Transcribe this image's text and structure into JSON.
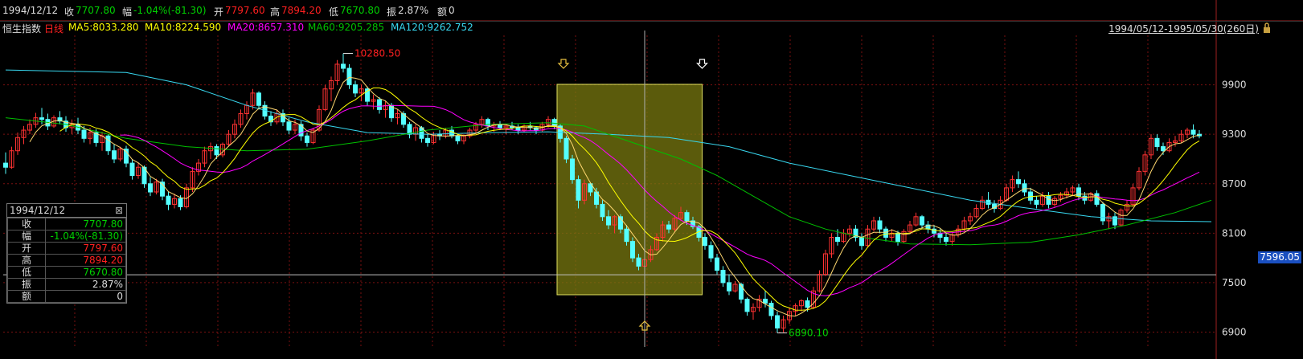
{
  "colors": {
    "up": "#ff3232",
    "down": "#54ffff",
    "ma5": "#ffffff",
    "ma10": "#ffff00",
    "ma20": "#ff00ff",
    "ma60": "#00c000",
    "ma120": "#38d8f0",
    "green": "#00d000",
    "red": "#ff2020",
    "yellow": "#ffff00",
    "highlight": "#7a7a10"
  },
  "header": {
    "date": "1994/12/12",
    "close_label": "收",
    "close": "7707.80",
    "chg_label": "幅",
    "chg": "-1.04%(-81.30)",
    "open_label": "开",
    "open": "7797.60",
    "high_label": "高",
    "high": "7894.20",
    "low_label": "低",
    "low": "7670.80",
    "amp_label": "振",
    "amp": "2.87%",
    "vol_label": "额",
    "vol": "0"
  },
  "ma_bar": {
    "name": "恒生指数",
    "period": "日线",
    "ma5": "MA5:8033.280",
    "ma10": "MA10:8224.590",
    "ma20": "MA20:8657.310",
    "ma60": "MA60:9205.285",
    "ma120": "MA120:9262.752"
  },
  "range_text": "1994/05/12-1995/05/30(260日)",
  "info_box": {
    "date": "1994/12/12",
    "close_icon": "close-icon",
    "rows": [
      {
        "k": "收",
        "v": "7707.80",
        "c": "green"
      },
      {
        "k": "幅",
        "v": "-1.04%(-81.30)",
        "c": "green"
      },
      {
        "k": "开",
        "v": "7797.60",
        "c": "red"
      },
      {
        "k": "高",
        "v": "7894.20",
        "c": "red"
      },
      {
        "k": "低",
        "v": "7670.80",
        "c": "green"
      },
      {
        "k": "振",
        "v": "2.87%",
        "c": "white"
      },
      {
        "k": "额",
        "v": "0",
        "c": "white"
      }
    ]
  },
  "current_price_tag": "7596.05",
  "chart_data": {
    "type": "candlestick",
    "title": "",
    "xlabel": "",
    "ylabel": "",
    "ylim": [
      6720,
      10500
    ],
    "y_ticks": [
      "9900",
      "9300",
      "8700",
      "8100",
      "7500",
      "6900"
    ],
    "y_tick_values": [
      9900,
      9300,
      8700,
      8100,
      7500,
      6900
    ],
    "grid": true,
    "annotations": {
      "high_label": "10280.50",
      "high_value": 10280.5,
      "low_label": "6890.10",
      "low_value": 6890.1
    },
    "current_price": 7596.05,
    "crosshair_index": 106,
    "highlight_range": {
      "from_index": 92,
      "to_index": 115
    },
    "candles": [
      [
        8950,
        9080,
        8820,
        8900
      ],
      [
        8900,
        9150,
        8880,
        9100
      ],
      [
        9100,
        9320,
        9050,
        9260
      ],
      [
        9260,
        9400,
        9180,
        9350
      ],
      [
        9350,
        9480,
        9300,
        9420
      ],
      [
        9420,
        9560,
        9380,
        9500
      ],
      [
        9500,
        9620,
        9420,
        9480
      ],
      [
        9480,
        9550,
        9350,
        9400
      ],
      [
        9400,
        9530,
        9380,
        9500
      ],
      [
        9500,
        9580,
        9420,
        9460
      ],
      [
        9460,
        9520,
        9330,
        9380
      ],
      [
        9380,
        9480,
        9300,
        9420
      ],
      [
        9420,
        9500,
        9300,
        9350
      ],
      [
        9350,
        9400,
        9200,
        9250
      ],
      [
        9250,
        9380,
        9180,
        9320
      ],
      [
        9320,
        9360,
        9150,
        9200
      ],
      [
        9200,
        9330,
        9100,
        9280
      ],
      [
        9280,
        9300,
        9050,
        9100
      ],
      [
        9100,
        9180,
        8950,
        9000
      ],
      [
        9000,
        9150,
        8970,
        9120
      ],
      [
        9120,
        9160,
        8900,
        8950
      ],
      [
        8950,
        9000,
        8750,
        8800
      ],
      [
        8800,
        8950,
        8760,
        8900
      ],
      [
        8900,
        8920,
        8650,
        8700
      ],
      [
        8700,
        8780,
        8550,
        8600
      ],
      [
        8600,
        8760,
        8570,
        8720
      ],
      [
        8720,
        8760,
        8500,
        8550
      ],
      [
        8550,
        8600,
        8380,
        8450
      ],
      [
        8450,
        8580,
        8400,
        8520
      ],
      [
        8520,
        8560,
        8380,
        8420
      ],
      [
        8420,
        8700,
        8400,
        8650
      ],
      [
        8650,
        8900,
        8600,
        8850
      ],
      [
        8850,
        9000,
        8800,
        8950
      ],
      [
        8950,
        9150,
        8900,
        9100
      ],
      [
        9100,
        9200,
        9000,
        9150
      ],
      [
        9150,
        9180,
        9000,
        9050
      ],
      [
        9050,
        9200,
        9020,
        9180
      ],
      [
        9180,
        9350,
        9150,
        9300
      ],
      [
        9300,
        9480,
        9250,
        9420
      ],
      [
        9420,
        9600,
        9380,
        9550
      ],
      [
        9550,
        9700,
        9480,
        9650
      ],
      [
        9650,
        9850,
        9600,
        9800
      ],
      [
        9800,
        9820,
        9600,
        9650
      ],
      [
        9650,
        9700,
        9480,
        9520
      ],
      [
        9520,
        9580,
        9400,
        9450
      ],
      [
        9450,
        9600,
        9420,
        9550
      ],
      [
        9550,
        9600,
        9400,
        9450
      ],
      [
        9450,
        9500,
        9300,
        9350
      ],
      [
        9350,
        9480,
        9300,
        9420
      ],
      [
        9420,
        9460,
        9220,
        9280
      ],
      [
        9280,
        9320,
        9150,
        9200
      ],
      [
        9200,
        9380,
        9180,
        9350
      ],
      [
        9350,
        9650,
        9330,
        9600
      ],
      [
        9600,
        9900,
        9580,
        9850
      ],
      [
        9850,
        10000,
        9700,
        9950
      ],
      [
        9950,
        10200,
        9900,
        10150
      ],
      [
        10150,
        10280,
        10050,
        10100
      ],
      [
        10100,
        10150,
        9850,
        9900
      ],
      [
        9900,
        9950,
        9750,
        9800
      ],
      [
        9800,
        9900,
        9700,
        9850
      ],
      [
        9850,
        9880,
        9650,
        9700
      ],
      [
        9700,
        9780,
        9600,
        9720
      ],
      [
        9720,
        9750,
        9550,
        9600
      ],
      [
        9600,
        9700,
        9500,
        9650
      ],
      [
        9650,
        9680,
        9450,
        9500
      ],
      [
        9500,
        9600,
        9420,
        9550
      ],
      [
        9550,
        9580,
        9380,
        9420
      ],
      [
        9420,
        9450,
        9250,
        9300
      ],
      [
        9300,
        9420,
        9220,
        9380
      ],
      [
        9380,
        9400,
        9200,
        9250
      ],
      [
        9250,
        9300,
        9150,
        9200
      ],
      [
        9200,
        9330,
        9180,
        9300
      ],
      [
        9300,
        9350,
        9230,
        9280
      ],
      [
        9280,
        9380,
        9250,
        9350
      ],
      [
        9350,
        9400,
        9250,
        9280
      ],
      [
        9280,
        9300,
        9180,
        9220
      ],
      [
        9220,
        9300,
        9180,
        9280
      ],
      [
        9280,
        9380,
        9250,
        9350
      ],
      [
        9350,
        9450,
        9300,
        9420
      ],
      [
        9420,
        9520,
        9380,
        9480
      ],
      [
        9480,
        9500,
        9350,
        9400
      ],
      [
        9400,
        9450,
        9330,
        9420
      ],
      [
        9420,
        9460,
        9350,
        9380
      ],
      [
        9380,
        9420,
        9300,
        9400
      ],
      [
        9400,
        9450,
        9350,
        9380
      ],
      [
        9380,
        9420,
        9300,
        9350
      ],
      [
        9350,
        9420,
        9320,
        9400
      ],
      [
        9400,
        9450,
        9350,
        9380
      ],
      [
        9380,
        9400,
        9300,
        9350
      ],
      [
        9350,
        9450,
        9330,
        9420
      ],
      [
        9420,
        9520,
        9380,
        9480
      ],
      [
        9480,
        9500,
        9360,
        9400
      ],
      [
        9400,
        9420,
        9200,
        9250
      ],
      [
        9250,
        9280,
        8950,
        9000
      ],
      [
        9000,
        9050,
        8700,
        8750
      ],
      [
        8750,
        8800,
        8400,
        8500
      ],
      [
        8500,
        8750,
        8450,
        8700
      ],
      [
        8700,
        8720,
        8550,
        8600
      ],
      [
        8600,
        8650,
        8400,
        8450
      ],
      [
        8450,
        8500,
        8250,
        8300
      ],
      [
        8300,
        8380,
        8150,
        8200
      ],
      [
        8200,
        8320,
        8100,
        8300
      ],
      [
        8300,
        8330,
        8100,
        8150
      ],
      [
        8150,
        8200,
        7950,
        8000
      ],
      [
        8000,
        8050,
        7750,
        7800
      ],
      [
        7800,
        7850,
        7650,
        7700
      ],
      [
        7700,
        7800,
        7650,
        7780
      ],
      [
        7780,
        7950,
        7750,
        7900
      ],
      [
        7900,
        8100,
        7880,
        8050
      ],
      [
        8050,
        8250,
        8000,
        8200
      ],
      [
        8200,
        8250,
        8100,
        8150
      ],
      [
        8150,
        8320,
        8120,
        8280
      ],
      [
        8280,
        8420,
        8250,
        8350
      ],
      [
        8350,
        8380,
        8200,
        8250
      ],
      [
        8250,
        8300,
        8150,
        8180
      ],
      [
        8180,
        8200,
        8000,
        8050
      ],
      [
        8050,
        8100,
        7900,
        7950
      ],
      [
        7950,
        8000,
        7750,
        7800
      ],
      [
        7800,
        7850,
        7600,
        7650
      ],
      [
        7650,
        7700,
        7450,
        7500
      ],
      [
        7500,
        7600,
        7350,
        7400
      ],
      [
        7400,
        7520,
        7380,
        7480
      ],
      [
        7480,
        7500,
        7250,
        7300
      ],
      [
        7300,
        7320,
        7100,
        7150
      ],
      [
        7150,
        7250,
        7050,
        7200
      ],
      [
        7200,
        7350,
        7150,
        7300
      ],
      [
        7300,
        7400,
        7200,
        7250
      ],
      [
        7250,
        7280,
        7050,
        7100
      ],
      [
        7100,
        7150,
        6890,
        6950
      ],
      [
        6950,
        7100,
        6900,
        7050
      ],
      [
        7050,
        7200,
        7000,
        7150
      ],
      [
        7150,
        7250,
        7100,
        7220
      ],
      [
        7220,
        7300,
        7150,
        7280
      ],
      [
        7280,
        7320,
        7150,
        7200
      ],
      [
        7200,
        7450,
        7180,
        7400
      ],
      [
        7400,
        7650,
        7380,
        7600
      ],
      [
        7600,
        7900,
        7580,
        7850
      ],
      [
        7850,
        8100,
        7800,
        8050
      ],
      [
        8050,
        8150,
        7950,
        8000
      ],
      [
        8000,
        8150,
        7980,
        8100
      ],
      [
        8100,
        8200,
        8050,
        8150
      ],
      [
        8150,
        8200,
        8000,
        8050
      ],
      [
        8050,
        8100,
        7900,
        7950
      ],
      [
        7950,
        8200,
        7930,
        8150
      ],
      [
        8150,
        8300,
        8120,
        8250
      ],
      [
        8250,
        8300,
        8100,
        8150
      ],
      [
        8150,
        8180,
        8000,
        8050
      ],
      [
        8050,
        8150,
        8000,
        8100
      ],
      [
        8100,
        8130,
        7950,
        8000
      ],
      [
        8000,
        8150,
        7980,
        8120
      ],
      [
        8120,
        8250,
        8100,
        8200
      ],
      [
        8200,
        8350,
        8180,
        8300
      ],
      [
        8300,
        8320,
        8150,
        8200
      ],
      [
        8200,
        8250,
        8100,
        8150
      ],
      [
        8150,
        8200,
        8050,
        8100
      ],
      [
        8100,
        8150,
        7980,
        8050
      ],
      [
        8050,
        8100,
        7950,
        8000
      ],
      [
        8000,
        8100,
        7950,
        8080
      ],
      [
        8080,
        8200,
        8050,
        8150
      ],
      [
        8150,
        8300,
        8120,
        8250
      ],
      [
        8250,
        8350,
        8200,
        8300
      ],
      [
        8300,
        8450,
        8280,
        8400
      ],
      [
        8400,
        8550,
        8380,
        8500
      ],
      [
        8500,
        8600,
        8400,
        8450
      ],
      [
        8450,
        8500,
        8350,
        8400
      ],
      [
        8400,
        8550,
        8380,
        8500
      ],
      [
        8500,
        8700,
        8480,
        8650
      ],
      [
        8650,
        8800,
        8600,
        8750
      ],
      [
        8750,
        8850,
        8650,
        8700
      ],
      [
        8700,
        8750,
        8550,
        8600
      ],
      [
        8600,
        8650,
        8450,
        8500
      ],
      [
        8500,
        8550,
        8400,
        8450
      ],
      [
        8450,
        8600,
        8420,
        8550
      ],
      [
        8550,
        8600,
        8400,
        8450
      ],
      [
        8450,
        8550,
        8420,
        8520
      ],
      [
        8520,
        8600,
        8480,
        8560
      ],
      [
        8560,
        8650,
        8520,
        8600
      ],
      [
        8600,
        8680,
        8550,
        8650
      ],
      [
        8650,
        8700,
        8500,
        8550
      ],
      [
        8550,
        8600,
        8450,
        8500
      ],
      [
        8500,
        8600,
        8480,
        8580
      ],
      [
        8580,
        8620,
        8420,
        8450
      ],
      [
        8450,
        8480,
        8200,
        8250
      ],
      [
        8250,
        8350,
        8150,
        8300
      ],
      [
        8300,
        8350,
        8150,
        8200
      ],
      [
        8200,
        8400,
        8180,
        8380
      ],
      [
        8380,
        8500,
        8350,
        8450
      ],
      [
        8450,
        8700,
        8420,
        8650
      ],
      [
        8650,
        8900,
        8620,
        8850
      ],
      [
        8850,
        9100,
        8800,
        9050
      ],
      [
        9050,
        9300,
        9000,
        9250
      ],
      [
        9250,
        9300,
        9100,
        9150
      ],
      [
        9150,
        9200,
        9050,
        9100
      ],
      [
        9100,
        9250,
        9080,
        9200
      ],
      [
        9200,
        9280,
        9150,
        9220
      ],
      [
        9220,
        9350,
        9200,
        9300
      ],
      [
        9300,
        9380,
        9250,
        9350
      ],
      [
        9350,
        9420,
        9250,
        9300
      ],
      [
        9300,
        9350,
        9250,
        9280
      ]
    ],
    "ma5": [],
    "ma10": [],
    "ma20": [],
    "ma60_points": [
      [
        0,
        9500
      ],
      [
        10,
        9420
      ],
      [
        20,
        9250
      ],
      [
        30,
        9150
      ],
      [
        40,
        9100
      ],
      [
        50,
        9120
      ],
      [
        60,
        9220
      ],
      [
        70,
        9350
      ],
      [
        80,
        9420
      ],
      [
        90,
        9440
      ],
      [
        96,
        9400
      ],
      [
        100,
        9300
      ],
      [
        106,
        9150
      ],
      [
        112,
        9000
      ],
      [
        118,
        8800
      ],
      [
        124,
        8550
      ],
      [
        130,
        8300
      ],
      [
        136,
        8150
      ],
      [
        142,
        8050
      ],
      [
        150,
        7970
      ],
      [
        160,
        7960
      ],
      [
        170,
        7990
      ],
      [
        178,
        8080
      ],
      [
        186,
        8200
      ],
      [
        194,
        8350
      ],
      [
        200,
        8500
      ]
    ],
    "ma120_points": [
      [
        0,
        10080
      ],
      [
        20,
        10050
      ],
      [
        30,
        9900
      ],
      [
        40,
        9650
      ],
      [
        50,
        9450
      ],
      [
        60,
        9320
      ],
      [
        70,
        9300
      ],
      [
        80,
        9320
      ],
      [
        90,
        9330
      ],
      [
        100,
        9300
      ],
      [
        110,
        9260
      ],
      [
        120,
        9150
      ],
      [
        130,
        8950
      ],
      [
        140,
        8800
      ],
      [
        150,
        8650
      ],
      [
        160,
        8500
      ],
      [
        170,
        8400
      ],
      [
        180,
        8300
      ],
      [
        190,
        8250
      ],
      [
        200,
        8240
      ]
    ]
  }
}
